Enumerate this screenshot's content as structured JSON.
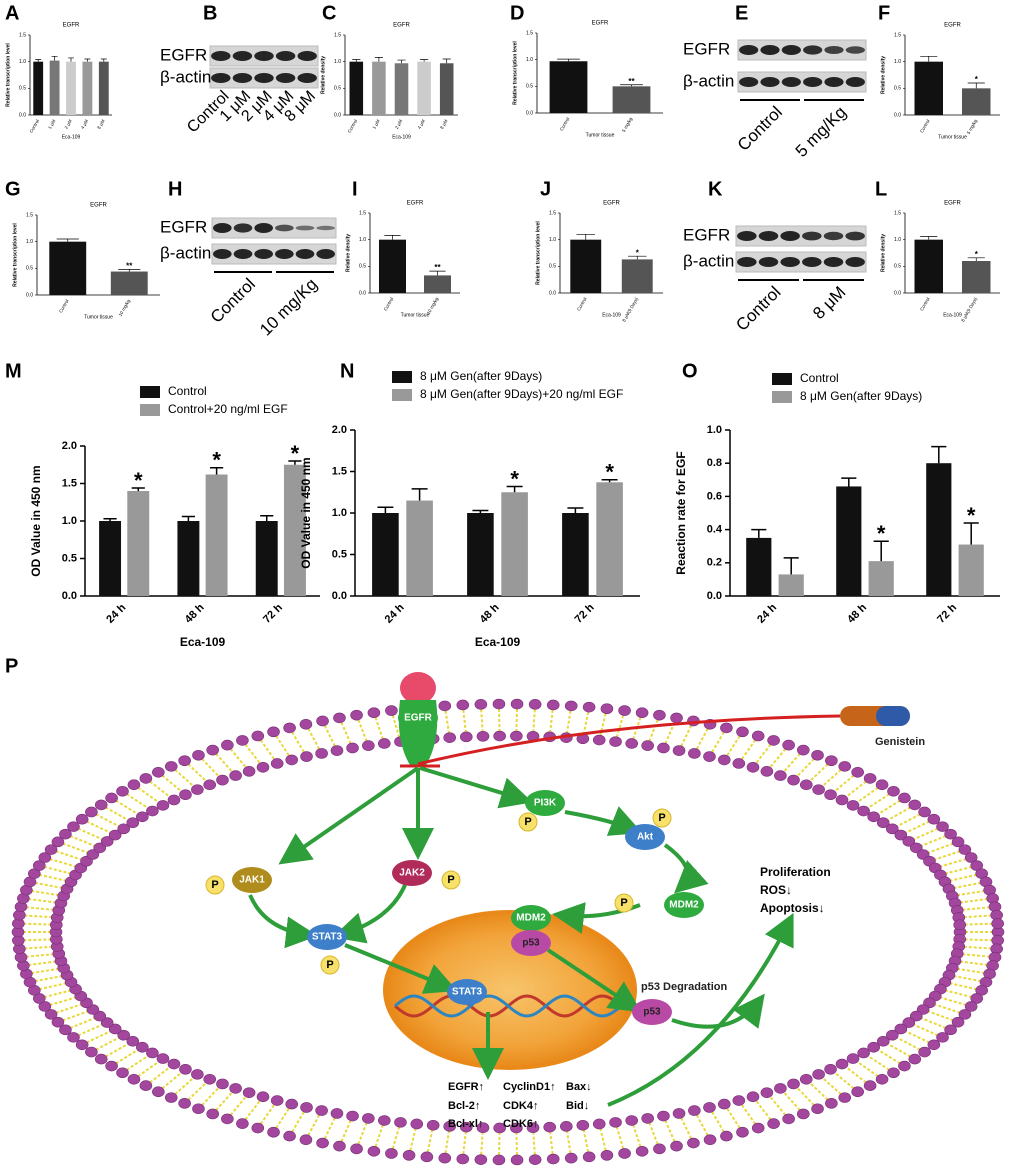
{
  "chart_data": [
    {
      "panel": "A",
      "type": "bar",
      "title": "EGFR",
      "ylabel": "Relative transcription level",
      "xlabel": "Eca-109",
      "categories": [
        "Control",
        "1 μM",
        "2 μM",
        "4 μM",
        "8 μM"
      ],
      "values": [
        1.0,
        1.02,
        1.0,
        1.0,
        1.0
      ],
      "errors": [
        0.04,
        0.08,
        0.07,
        0.05,
        0.05
      ],
      "colors": [
        "#111111",
        "#777777",
        "#cccccc",
        "#999999",
        "#555555"
      ],
      "ylim": [
        0,
        1.5
      ],
      "yticks": [
        {
          "value": 0,
          "label": "0.0"
        },
        {
          "value": 0.5,
          "label": "0.5"
        },
        {
          "value": 1,
          "label": "1.0"
        },
        {
          "value": 1.5,
          "label": "1.5"
        }
      ]
    },
    {
      "panel": "C",
      "type": "bar",
      "title": "EGFR",
      "ylabel": "Relative density",
      "xlabel": "Eca-109",
      "categories": [
        "Control",
        "1 μM",
        "2 μM",
        "4 μM",
        "8 μM"
      ],
      "values": [
        1.0,
        1.0,
        0.97,
        1.0,
        0.97
      ],
      "errors": [
        0.04,
        0.08,
        0.06,
        0.04,
        0.08
      ],
      "colors": [
        "#111111",
        "#999999",
        "#777777",
        "#cccccc",
        "#555555"
      ],
      "ylim": [
        0,
        1.5
      ],
      "yticks": [
        {
          "value": 0,
          "label": "0.0"
        },
        {
          "value": 0.5,
          "label": "0.5"
        },
        {
          "value": 1,
          "label": "1.0"
        },
        {
          "value": 1.5,
          "label": "1.5"
        }
      ]
    },
    {
      "panel": "D",
      "type": "bar",
      "title": "EGFR",
      "ylabel": "Relative transcription level",
      "xlabel": "Tumor tissue",
      "categories": [
        "Control",
        "5 mg/kg"
      ],
      "values": [
        0.97,
        0.5
      ],
      "errors": [
        0.04,
        0.03
      ],
      "significance": [
        null,
        "**"
      ],
      "colors": [
        "#111111",
        "#555555"
      ],
      "ylim": [
        0,
        1.5
      ],
      "yticks": [
        {
          "value": 0,
          "label": "0.0"
        },
        {
          "value": 0.5,
          "label": "0.5"
        },
        {
          "value": 1,
          "label": "1.0"
        },
        {
          "value": 1.5,
          "label": "1.5"
        }
      ]
    },
    {
      "panel": "F",
      "type": "bar",
      "title": "EGFR",
      "ylabel": "Relative density",
      "xlabel": "Tumor tissue",
      "categories": [
        "Control",
        "5 mg/kg"
      ],
      "values": [
        1.0,
        0.5
      ],
      "errors": [
        0.1,
        0.1
      ],
      "significance": [
        null,
        "*"
      ],
      "colors": [
        "#111111",
        "#555555"
      ],
      "ylim": [
        0,
        1.5
      ],
      "yticks": [
        {
          "value": 0,
          "label": "0.0"
        },
        {
          "value": 0.5,
          "label": "0.5"
        },
        {
          "value": 1,
          "label": "1.0"
        },
        {
          "value": 1.5,
          "label": "1.5"
        }
      ]
    },
    {
      "panel": "G",
      "type": "bar",
      "title": "EGFR",
      "ylabel": "Relative transcription level",
      "xlabel": "Tumor tissue",
      "categories": [
        "Control",
        "10 mg/kg"
      ],
      "values": [
        1.0,
        0.44
      ],
      "errors": [
        0.05,
        0.04
      ],
      "significance": [
        null,
        "**"
      ],
      "colors": [
        "#111111",
        "#555555"
      ],
      "ylim": [
        0,
        1.5
      ],
      "yticks": [
        {
          "value": 0,
          "label": "0.0"
        },
        {
          "value": 0.5,
          "label": "0.5"
        },
        {
          "value": 1,
          "label": "1.0"
        },
        {
          "value": 1.5,
          "label": "1.5"
        }
      ]
    },
    {
      "panel": "I",
      "type": "bar",
      "title": "EGFR",
      "ylabel": "Relative density",
      "xlabel": "Tumor tissue",
      "categories": [
        "Control",
        "10 mg/kg"
      ],
      "values": [
        1.0,
        0.33
      ],
      "errors": [
        0.08,
        0.08
      ],
      "significance": [
        null,
        "**"
      ],
      "colors": [
        "#111111",
        "#555555"
      ],
      "ylim": [
        0,
        1.5
      ],
      "yticks": [
        {
          "value": 0,
          "label": "0.0"
        },
        {
          "value": 0.5,
          "label": "0.5"
        },
        {
          "value": 1,
          "label": "1.0"
        },
        {
          "value": 1.5,
          "label": "1.5"
        }
      ]
    },
    {
      "panel": "J",
      "type": "bar",
      "title": "EGFR",
      "ylabel": "Relative transcription level",
      "xlabel": "Eca-109",
      "categories": [
        "Control",
        "8 μM(9 Days)"
      ],
      "values": [
        1.0,
        0.63
      ],
      "errors": [
        0.1,
        0.06
      ],
      "significance": [
        null,
        "*"
      ],
      "colors": [
        "#111111",
        "#555555"
      ],
      "ylim": [
        0,
        1.5
      ],
      "yticks": [
        {
          "value": 0,
          "label": "0.0"
        },
        {
          "value": 0.5,
          "label": "0.5"
        },
        {
          "value": 1,
          "label": "1.0"
        },
        {
          "value": 1.5,
          "label": "1.5"
        }
      ]
    },
    {
      "panel": "L",
      "type": "bar",
      "title": "EGFR",
      "ylabel": "Relative density",
      "xlabel": "Eca-109",
      "categories": [
        "Control",
        "8 μM(9 Days)"
      ],
      "values": [
        1.0,
        0.6
      ],
      "errors": [
        0.06,
        0.06
      ],
      "significance": [
        null,
        "*"
      ],
      "colors": [
        "#111111",
        "#555555"
      ],
      "ylim": [
        0,
        1.5
      ],
      "yticks": [
        {
          "value": 0,
          "label": "0.0"
        },
        {
          "value": 0.5,
          "label": "0.5"
        },
        {
          "value": 1,
          "label": "1.0"
        },
        {
          "value": 1.5,
          "label": "1.5"
        }
      ]
    },
    {
      "panel": "M",
      "type": "bar",
      "ylabel": "OD Value in 450 nm",
      "xlabel": "Eca-109",
      "categories": [
        "24 h",
        "48 h",
        "72 h"
      ],
      "series": [
        {
          "name": "Control",
          "color": "#111111",
          "values": [
            1.0,
            1.0,
            1.0
          ],
          "errors": [
            0.03,
            0.06,
            0.07
          ]
        },
        {
          "name": "Control+20 ng/ml EGF",
          "color": "#999999",
          "values": [
            1.4,
            1.62,
            1.75
          ],
          "errors": [
            0.04,
            0.09,
            0.05
          ],
          "significance": [
            "*",
            "*",
            "*"
          ]
        }
      ],
      "ylim": [
        0,
        2
      ],
      "yticks": [
        {
          "value": 0,
          "label": "0.0"
        },
        {
          "value": 0.5,
          "label": "0.5"
        },
        {
          "value": 1,
          "label": "1.0"
        },
        {
          "value": 1.5,
          "label": "1.5"
        },
        {
          "value": 2,
          "label": "2.0"
        }
      ]
    },
    {
      "panel": "N",
      "type": "bar",
      "ylabel": "OD Value in 450 nm",
      "xlabel": "Eca-109",
      "categories": [
        "24 h",
        "48 h",
        "72 h"
      ],
      "series": [
        {
          "name": "8 μM Gen(after 9Days)",
          "color": "#111111",
          "values": [
            1.0,
            1.0,
            1.0
          ],
          "errors": [
            0.07,
            0.03,
            0.06
          ]
        },
        {
          "name": "8 μM Gen(after 9Days)+20 ng/ml EGF",
          "color": "#999999",
          "values": [
            1.15,
            1.25,
            1.37
          ],
          "errors": [
            0.14,
            0.07,
            0.03
          ],
          "significance": [
            null,
            "*",
            "*"
          ]
        }
      ],
      "ylim": [
        0,
        2
      ],
      "yticks": [
        {
          "value": 0,
          "label": "0.0"
        },
        {
          "value": 0.5,
          "label": "0.5"
        },
        {
          "value": 1,
          "label": "1.0"
        },
        {
          "value": 1.5,
          "label": "1.5"
        },
        {
          "value": 2,
          "label": "2.0"
        }
      ]
    },
    {
      "panel": "O",
      "type": "bar",
      "ylabel": "Reaction rate for EGF",
      "categories": [
        "24 h",
        "48 h",
        "72 h"
      ],
      "series": [
        {
          "name": "Control",
          "color": "#111111",
          "values": [
            0.35,
            0.66,
            0.8
          ],
          "errors": [
            0.05,
            0.05,
            0.1
          ]
        },
        {
          "name": "8 μM Gen(after 9Days)",
          "color": "#999999",
          "values": [
            0.13,
            0.21,
            0.31
          ],
          "errors": [
            0.1,
            0.12,
            0.13
          ],
          "significance": [
            null,
            "*",
            "*"
          ]
        }
      ],
      "ylim": [
        0,
        1
      ],
      "yticks": [
        {
          "value": 0,
          "label": "0.0"
        },
        {
          "value": 0.2,
          "label": "0.2"
        },
        {
          "value": 0.4,
          "label": "0.4"
        },
        {
          "value": 0.6,
          "label": "0.6"
        },
        {
          "value": 0.8,
          "label": "0.8"
        },
        {
          "value": 1,
          "label": "1.0"
        }
      ]
    }
  ],
  "blots": [
    {
      "panel": "B",
      "rows": [
        "EGFR",
        "β-actin"
      ],
      "lanes": [
        "Control",
        "1 μM",
        "2 μM",
        "4 μM",
        "8 μM"
      ]
    },
    {
      "panel": "E",
      "rows": [
        "EGFR",
        "β-actin"
      ],
      "groups": [
        "Control",
        "5 mg/Kg"
      ]
    },
    {
      "panel": "H",
      "rows": [
        "EGFR",
        "β-actin"
      ],
      "groups": [
        "Control",
        "10 mg/Kg"
      ]
    },
    {
      "panel": "K",
      "rows": [
        "EGFR",
        "β-actin"
      ],
      "groups": [
        "Control",
        "8 μM"
      ]
    }
  ],
  "diagram": {
    "panel": "P",
    "phosphate": "P",
    "nodes": [
      {
        "label": "EGFR"
      },
      {
        "label": "Genistein"
      },
      {
        "label": "PI3K"
      },
      {
        "label": "Akt"
      },
      {
        "label": "JAK1"
      },
      {
        "label": "JAK2"
      },
      {
        "label": "STAT3"
      },
      {
        "label": "MDM2"
      },
      {
        "label": "MDM2"
      },
      {
        "label": "p53"
      },
      {
        "label": "STAT3"
      },
      {
        "label": "p53 Degradation"
      },
      {
        "label": "p53"
      }
    ],
    "outcomes": [
      "Proliferation",
      "ROS↓",
      "Apoptosis↓"
    ],
    "targets": [
      "EGFR↑",
      "Bcl-2↑",
      "Bcl-xl↑",
      "CyclinD1↑",
      "CDK4↑",
      "CDK6↑",
      "Bax↓",
      "Bid↓"
    ]
  }
}
